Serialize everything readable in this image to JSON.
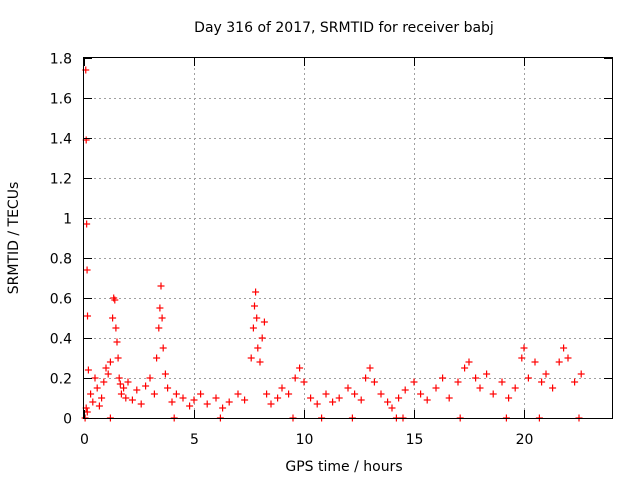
{
  "chart_data": {
    "type": "scatter",
    "title": "Day 316 of 2017, SRMTID for receiver babj",
    "xlabel": "GPS time / hours",
    "ylabel": "SRMTID / TECUs",
    "xlim": [
      0,
      24
    ],
    "ylim": [
      0,
      1.8
    ],
    "grid": true,
    "marker": "+",
    "color": "#ff0000",
    "x_ticks": [
      0,
      5,
      10,
      15,
      20
    ],
    "x_tick_labels": [
      "0",
      "5",
      "10",
      "15",
      "20"
    ],
    "y_ticks": [
      0,
      0.2,
      0.4,
      0.6,
      0.8,
      1.0,
      1.2,
      1.4,
      1.6,
      1.8
    ],
    "y_tick_labels": [
      "0",
      "0.2",
      "0.4",
      "0.6",
      "0.8",
      "1",
      "1.2",
      "1.4",
      "1.6",
      "1.8"
    ],
    "series": [
      {
        "name": "SRMTID",
        "x": [
          0.08,
          0.1,
          0.12,
          0.14,
          0.16,
          0.2,
          0.1,
          0.15,
          0.3,
          0.4,
          0.5,
          0.6,
          0.7,
          0.8,
          0.9,
          1.0,
          1.1,
          1.2,
          1.3,
          1.35,
          1.4,
          1.45,
          1.5,
          1.55,
          1.6,
          1.65,
          1.7,
          1.8,
          1.9,
          2.0,
          2.2,
          2.4,
          2.6,
          2.8,
          3.0,
          3.2,
          3.3,
          3.4,
          3.45,
          3.5,
          3.55,
          3.6,
          3.7,
          3.8,
          4.0,
          4.2,
          4.5,
          4.8,
          5.0,
          5.3,
          5.6,
          6.0,
          6.3,
          6.6,
          7.0,
          7.3,
          7.6,
          7.7,
          7.75,
          7.8,
          7.85,
          7.9,
          8.0,
          8.1,
          8.2,
          8.3,
          8.5,
          8.8,
          9.0,
          9.3,
          9.6,
          9.8,
          10.0,
          10.3,
          10.6,
          11.0,
          11.3,
          11.6,
          12.0,
          12.3,
          12.6,
          12.8,
          13.0,
          13.2,
          13.5,
          13.8,
          14.0,
          14.3,
          14.6,
          15.0,
          15.3,
          15.6,
          16.0,
          16.3,
          16.6,
          17.0,
          17.3,
          17.5,
          17.8,
          18.0,
          18.3,
          18.6,
          19.0,
          19.3,
          19.6,
          19.9,
          20.0,
          20.2,
          20.5,
          20.8,
          21.0,
          21.3,
          21.6,
          21.8,
          22.0,
          22.3,
          22.6,
          0.05,
          1.2,
          4.1,
          6.2,
          9.5,
          10.8,
          12.2,
          14.2,
          14.5,
          17.1,
          19.2,
          20.7,
          22.5
        ],
        "y": [
          1.74,
          1.39,
          0.97,
          0.74,
          0.51,
          0.24,
          0.05,
          0.03,
          0.12,
          0.08,
          0.2,
          0.15,
          0.06,
          0.1,
          0.18,
          0.25,
          0.22,
          0.28,
          0.5,
          0.6,
          0.59,
          0.45,
          0.38,
          0.3,
          0.2,
          0.17,
          0.12,
          0.15,
          0.1,
          0.18,
          0.09,
          0.14,
          0.07,
          0.16,
          0.2,
          0.12,
          0.3,
          0.45,
          0.55,
          0.66,
          0.5,
          0.35,
          0.22,
          0.15,
          0.08,
          0.12,
          0.1,
          0.06,
          0.09,
          0.12,
          0.07,
          0.1,
          0.05,
          0.08,
          0.12,
          0.09,
          0.3,
          0.45,
          0.56,
          0.63,
          0.5,
          0.35,
          0.28,
          0.4,
          0.48,
          0.12,
          0.07,
          0.1,
          0.15,
          0.12,
          0.2,
          0.25,
          0.18,
          0.1,
          0.07,
          0.12,
          0.08,
          0.1,
          0.15,
          0.12,
          0.09,
          0.2,
          0.25,
          0.18,
          0.12,
          0.08,
          0.05,
          0.1,
          0.14,
          0.18,
          0.12,
          0.09,
          0.15,
          0.2,
          0.1,
          0.18,
          0.25,
          0.28,
          0.2,
          0.15,
          0.22,
          0.12,
          0.18,
          0.1,
          0.15,
          0.3,
          0.35,
          0.2,
          0.28,
          0.18,
          0.22,
          0.15,
          0.28,
          0.35,
          0.3,
          0.18,
          0.22,
          0.0,
          0.0,
          0.0,
          0.0,
          0.0,
          0.0,
          0.0,
          0.0,
          0.0,
          0.0,
          0.0,
          0.0,
          0.0
        ]
      }
    ]
  }
}
